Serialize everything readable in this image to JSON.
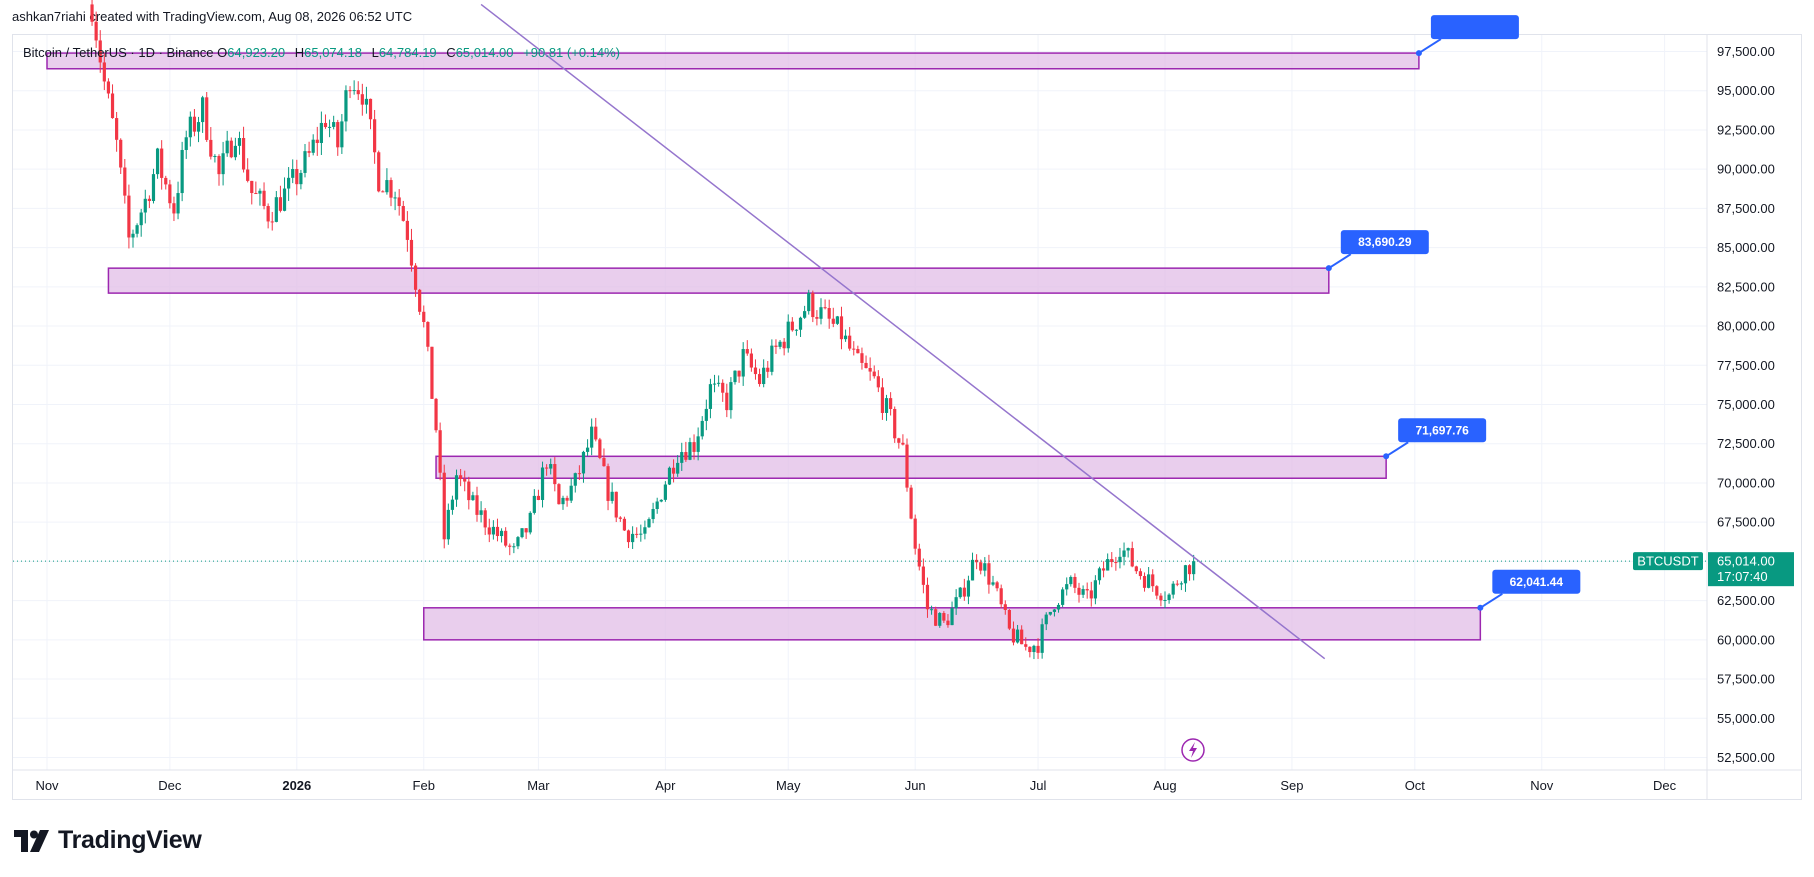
{
  "header": {
    "author_line": "ashkan7riahi created with TradingView.com, Aug 08, 2026 06:52 UTC"
  },
  "legend": {
    "symbol": "Bitcoin / TetherUS · 1D · Binance",
    "open_key": "O",
    "open": "64,923.20",
    "high_key": "H",
    "high": "65,074.18",
    "low_key": "L",
    "low": "64,784.19",
    "close_key": "C",
    "close": "65,014.00",
    "change": "+90.81 (+0.14%)"
  },
  "brand": {
    "name": "TradingView"
  },
  "colors": {
    "up": "#089981",
    "down": "#f23645",
    "zone_fill": "#e1bee7",
    "zone_border": "#9c27b0",
    "trendline": "#9575cd",
    "callout": "#2962ff",
    "grid": "#f0f3fa"
  },
  "chart_data": {
    "type": "candlestick",
    "symbol_tag": "BTCUSDT",
    "last_price": "65,014.00",
    "countdown": "17:07:40",
    "y_ticks": [
      {
        "value": 97500,
        "label": "97,500.00"
      },
      {
        "value": 95000,
        "label": "95,000.00"
      },
      {
        "value": 92500,
        "label": "92,500.00"
      },
      {
        "value": 90000,
        "label": "90,000.00"
      },
      {
        "value": 87500,
        "label": "87,500.00"
      },
      {
        "value": 85000,
        "label": "85,000.00"
      },
      {
        "value": 82500,
        "label": "82,500.00"
      },
      {
        "value": 80000,
        "label": "80,000.00"
      },
      {
        "value": 77500,
        "label": "77,500.00"
      },
      {
        "value": 75000,
        "label": "75,000.00"
      },
      {
        "value": 72500,
        "label": "72,500.00"
      },
      {
        "value": 70000,
        "label": "70,000.00"
      },
      {
        "value": 67500,
        "label": "67,500.00"
      },
      {
        "value": 65000,
        "label": "65,000.00"
      },
      {
        "value": 62500,
        "label": "62,500.00"
      },
      {
        "value": 60000,
        "label": "60,000.00"
      },
      {
        "value": 57500,
        "label": "57,500.00"
      },
      {
        "value": 55000,
        "label": "55,000.00"
      },
      {
        "value": 52500,
        "label": "52,500.00"
      }
    ],
    "x_ticks": [
      {
        "date": "2025-11-01",
        "label": "Nov"
      },
      {
        "date": "2025-12-01",
        "label": "Dec"
      },
      {
        "date": "2026-01-01",
        "label": "2026",
        "bold": true
      },
      {
        "date": "2026-02-01",
        "label": "Feb"
      },
      {
        "date": "2026-03-01",
        "label": "Mar"
      },
      {
        "date": "2026-04-01",
        "label": "Apr"
      },
      {
        "date": "2026-05-01",
        "label": "May"
      },
      {
        "date": "2026-06-01",
        "label": "Jun"
      },
      {
        "date": "2026-07-01",
        "label": "Jul"
      },
      {
        "date": "2026-08-01",
        "label": "Aug"
      },
      {
        "date": "2026-09-01",
        "label": "Sep"
      },
      {
        "date": "2026-10-01",
        "label": "Oct"
      },
      {
        "date": "2026-11-01",
        "label": "Nov"
      },
      {
        "date": "2026-12-01",
        "label": "Dec"
      }
    ],
    "closes": [
      {
        "date": "2025-11-12",
        "close": 100500
      },
      {
        "date": "2025-11-15",
        "close": 95500
      },
      {
        "date": "2025-11-18",
        "close": 91500
      },
      {
        "date": "2025-11-21",
        "close": 85500
      },
      {
        "date": "2025-11-25",
        "close": 88000
      },
      {
        "date": "2025-11-28",
        "close": 90500
      },
      {
        "date": "2025-12-02",
        "close": 87500
      },
      {
        "date": "2025-12-05",
        "close": 92000
      },
      {
        "date": "2025-12-09",
        "close": 93800
      },
      {
        "date": "2025-12-13",
        "close": 89500
      },
      {
        "date": "2025-12-17",
        "close": 92500
      },
      {
        "date": "2025-12-21",
        "close": 88500
      },
      {
        "date": "2025-12-25",
        "close": 87200
      },
      {
        "date": "2025-12-30",
        "close": 88700
      },
      {
        "date": "2026-01-04",
        "close": 90800
      },
      {
        "date": "2026-01-08",
        "close": 93300
      },
      {
        "date": "2026-01-11",
        "close": 91500
      },
      {
        "date": "2026-01-14",
        "close": 96000
      },
      {
        "date": "2026-01-17",
        "close": 95000
      },
      {
        "date": "2026-01-21",
        "close": 89500
      },
      {
        "date": "2026-01-25",
        "close": 88700
      },
      {
        "date": "2026-01-28",
        "close": 86000
      },
      {
        "date": "2026-02-01",
        "close": 80000
      },
      {
        "date": "2026-02-04",
        "close": 73500
      },
      {
        "date": "2026-02-06",
        "close": 66500
      },
      {
        "date": "2026-02-09",
        "close": 70500
      },
      {
        "date": "2026-02-13",
        "close": 68500
      },
      {
        "date": "2026-02-18",
        "close": 67000
      },
      {
        "date": "2026-02-23",
        "close": 65500
      },
      {
        "date": "2026-02-27",
        "close": 67500
      },
      {
        "date": "2026-03-03",
        "close": 71500
      },
      {
        "date": "2026-03-06",
        "close": 68500
      },
      {
        "date": "2026-03-10",
        "close": 70000
      },
      {
        "date": "2026-03-14",
        "close": 73000
      },
      {
        "date": "2026-03-18",
        "close": 69500
      },
      {
        "date": "2026-03-22",
        "close": 67000
      },
      {
        "date": "2026-03-27",
        "close": 66500
      },
      {
        "date": "2026-03-31",
        "close": 69500
      },
      {
        "date": "2026-04-04",
        "close": 72000
      },
      {
        "date": "2026-04-08",
        "close": 72500
      },
      {
        "date": "2026-04-12",
        "close": 76000
      },
      {
        "date": "2026-04-16",
        "close": 75200
      },
      {
        "date": "2026-04-20",
        "close": 78000
      },
      {
        "date": "2026-04-24",
        "close": 76500
      },
      {
        "date": "2026-04-28",
        "close": 78500
      },
      {
        "date": "2026-05-02",
        "close": 80000
      },
      {
        "date": "2026-05-06",
        "close": 81500
      },
      {
        "date": "2026-05-10",
        "close": 80500
      },
      {
        "date": "2026-05-14",
        "close": 79500
      },
      {
        "date": "2026-05-18",
        "close": 77500
      },
      {
        "date": "2026-05-22",
        "close": 76500
      },
      {
        "date": "2026-05-26",
        "close": 74000
      },
      {
        "date": "2026-05-29",
        "close": 72000
      },
      {
        "date": "2026-06-01",
        "close": 66000
      },
      {
        "date": "2026-06-04",
        "close": 62000
      },
      {
        "date": "2026-06-08",
        "close": 61000
      },
      {
        "date": "2026-06-12",
        "close": 62700
      },
      {
        "date": "2026-06-16",
        "close": 65500
      },
      {
        "date": "2026-06-20",
        "close": 63500
      },
      {
        "date": "2026-06-24",
        "close": 60500
      },
      {
        "date": "2026-06-28",
        "close": 59500
      },
      {
        "date": "2026-07-01",
        "close": 59800
      },
      {
        "date": "2026-07-05",
        "close": 62500
      },
      {
        "date": "2026-07-09",
        "close": 63500
      },
      {
        "date": "2026-07-13",
        "close": 62500
      },
      {
        "date": "2026-07-17",
        "close": 64500
      },
      {
        "date": "2026-07-21",
        "close": 66000
      },
      {
        "date": "2026-07-25",
        "close": 64500
      },
      {
        "date": "2026-07-29",
        "close": 63500
      },
      {
        "date": "2026-08-02",
        "close": 62800
      },
      {
        "date": "2026-08-05",
        "close": 64300
      },
      {
        "date": "2026-08-08",
        "close": 65014
      }
    ],
    "zones": [
      {
        "from": "2025-11-01",
        "to": "2026-10-02",
        "top": 97400,
        "bottom": 96400
      },
      {
        "from": "2025-11-16",
        "to": "2026-09-10",
        "top": 83690.29,
        "bottom": 82100
      },
      {
        "from": "2026-02-04",
        "to": "2026-09-24",
        "top": 71697.76,
        "bottom": 70300
      },
      {
        "from": "2026-02-01",
        "to": "2026-10-17",
        "top": 62041.44,
        "bottom": 60000
      }
    ],
    "callouts": [
      {
        "date": "2026-10-02",
        "value": 97400,
        "label": ""
      },
      {
        "date": "2026-09-10",
        "value": 83690.29,
        "label": "83,690.29"
      },
      {
        "date": "2026-09-24",
        "value": 71697.76,
        "label": "71,697.76"
      },
      {
        "date": "2026-10-17",
        "value": 62041.44,
        "label": "62,041.44"
      }
    ],
    "trendline": {
      "from": {
        "date": "2026-02-15",
        "value": 100500
      },
      "to": {
        "date": "2026-09-09",
        "value": 58800
      }
    },
    "y_range": [
      51000,
      100500
    ],
    "x_range": [
      "2025-10-27",
      "2027-01-05"
    ],
    "grid": true
  }
}
